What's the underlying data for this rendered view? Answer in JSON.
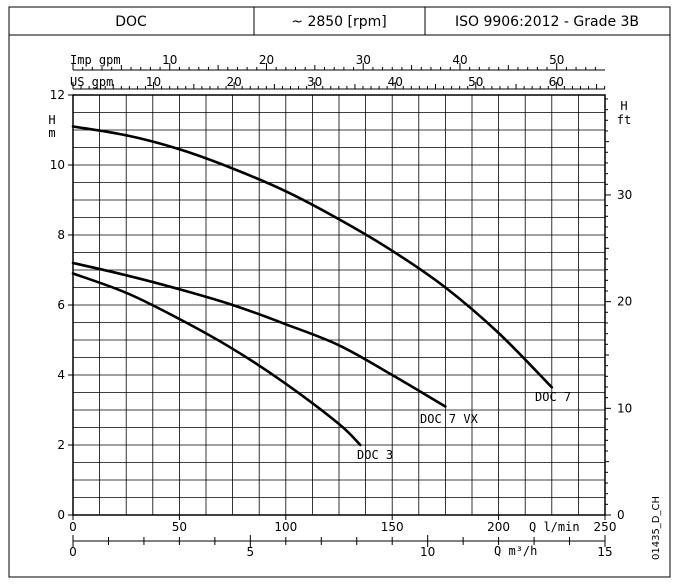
{
  "header": {
    "model": "DOC",
    "speed": "~ 2850 [rpm]",
    "standard": "ISO 9906:2012 - Grade 3B"
  },
  "chart_data": {
    "type": "line",
    "title": "",
    "xlabel": "Q  l/min",
    "ylabel": "H m",
    "xlim": [
      0,
      250
    ],
    "ylim": [
      0,
      12
    ],
    "grid": true,
    "axes": {
      "left": {
        "label_top": "H",
        "label_unit": "m",
        "ticks": [
          0,
          2,
          4,
          6,
          8,
          10,
          12
        ]
      },
      "right": {
        "label_top": "H",
        "label_unit": "ft",
        "ticks": [
          0,
          10,
          20,
          30
        ]
      },
      "bottom_lmin": {
        "label": "Q  l/min",
        "ticks": [
          0,
          50,
          100,
          150,
          200,
          250
        ]
      },
      "bottom_m3h": {
        "label": "Q  m³/h",
        "ticks": [
          0,
          5,
          10,
          15
        ]
      },
      "top_us_gpm": {
        "label": "US  gpm",
        "ticks": [
          10,
          20,
          30,
          40,
          50,
          60
        ]
      },
      "top_imp_gpm": {
        "label": "Imp  gpm",
        "ticks": [
          10,
          20,
          30,
          40,
          50
        ]
      }
    },
    "series": [
      {
        "name": "DOC 7",
        "x": [
          0,
          25,
          50,
          75,
          100,
          125,
          150,
          175,
          200,
          225
        ],
        "y": [
          11.1,
          10.85,
          10.45,
          9.9,
          9.25,
          8.45,
          7.55,
          6.5,
          5.2,
          3.65
        ]
      },
      {
        "name": "DOC 7 VX",
        "x": [
          0,
          25,
          50,
          75,
          100,
          125,
          150,
          175
        ],
        "y": [
          7.2,
          6.85,
          6.45,
          6.0,
          5.45,
          4.85,
          4.0,
          3.1
        ]
      },
      {
        "name": "DOC 3",
        "x": [
          0,
          25,
          50,
          75,
          100,
          125,
          135
        ],
        "y": [
          6.9,
          6.35,
          5.6,
          4.75,
          3.75,
          2.6,
          2.0
        ]
      }
    ]
  },
  "drawing_code": "01435_D_CH"
}
